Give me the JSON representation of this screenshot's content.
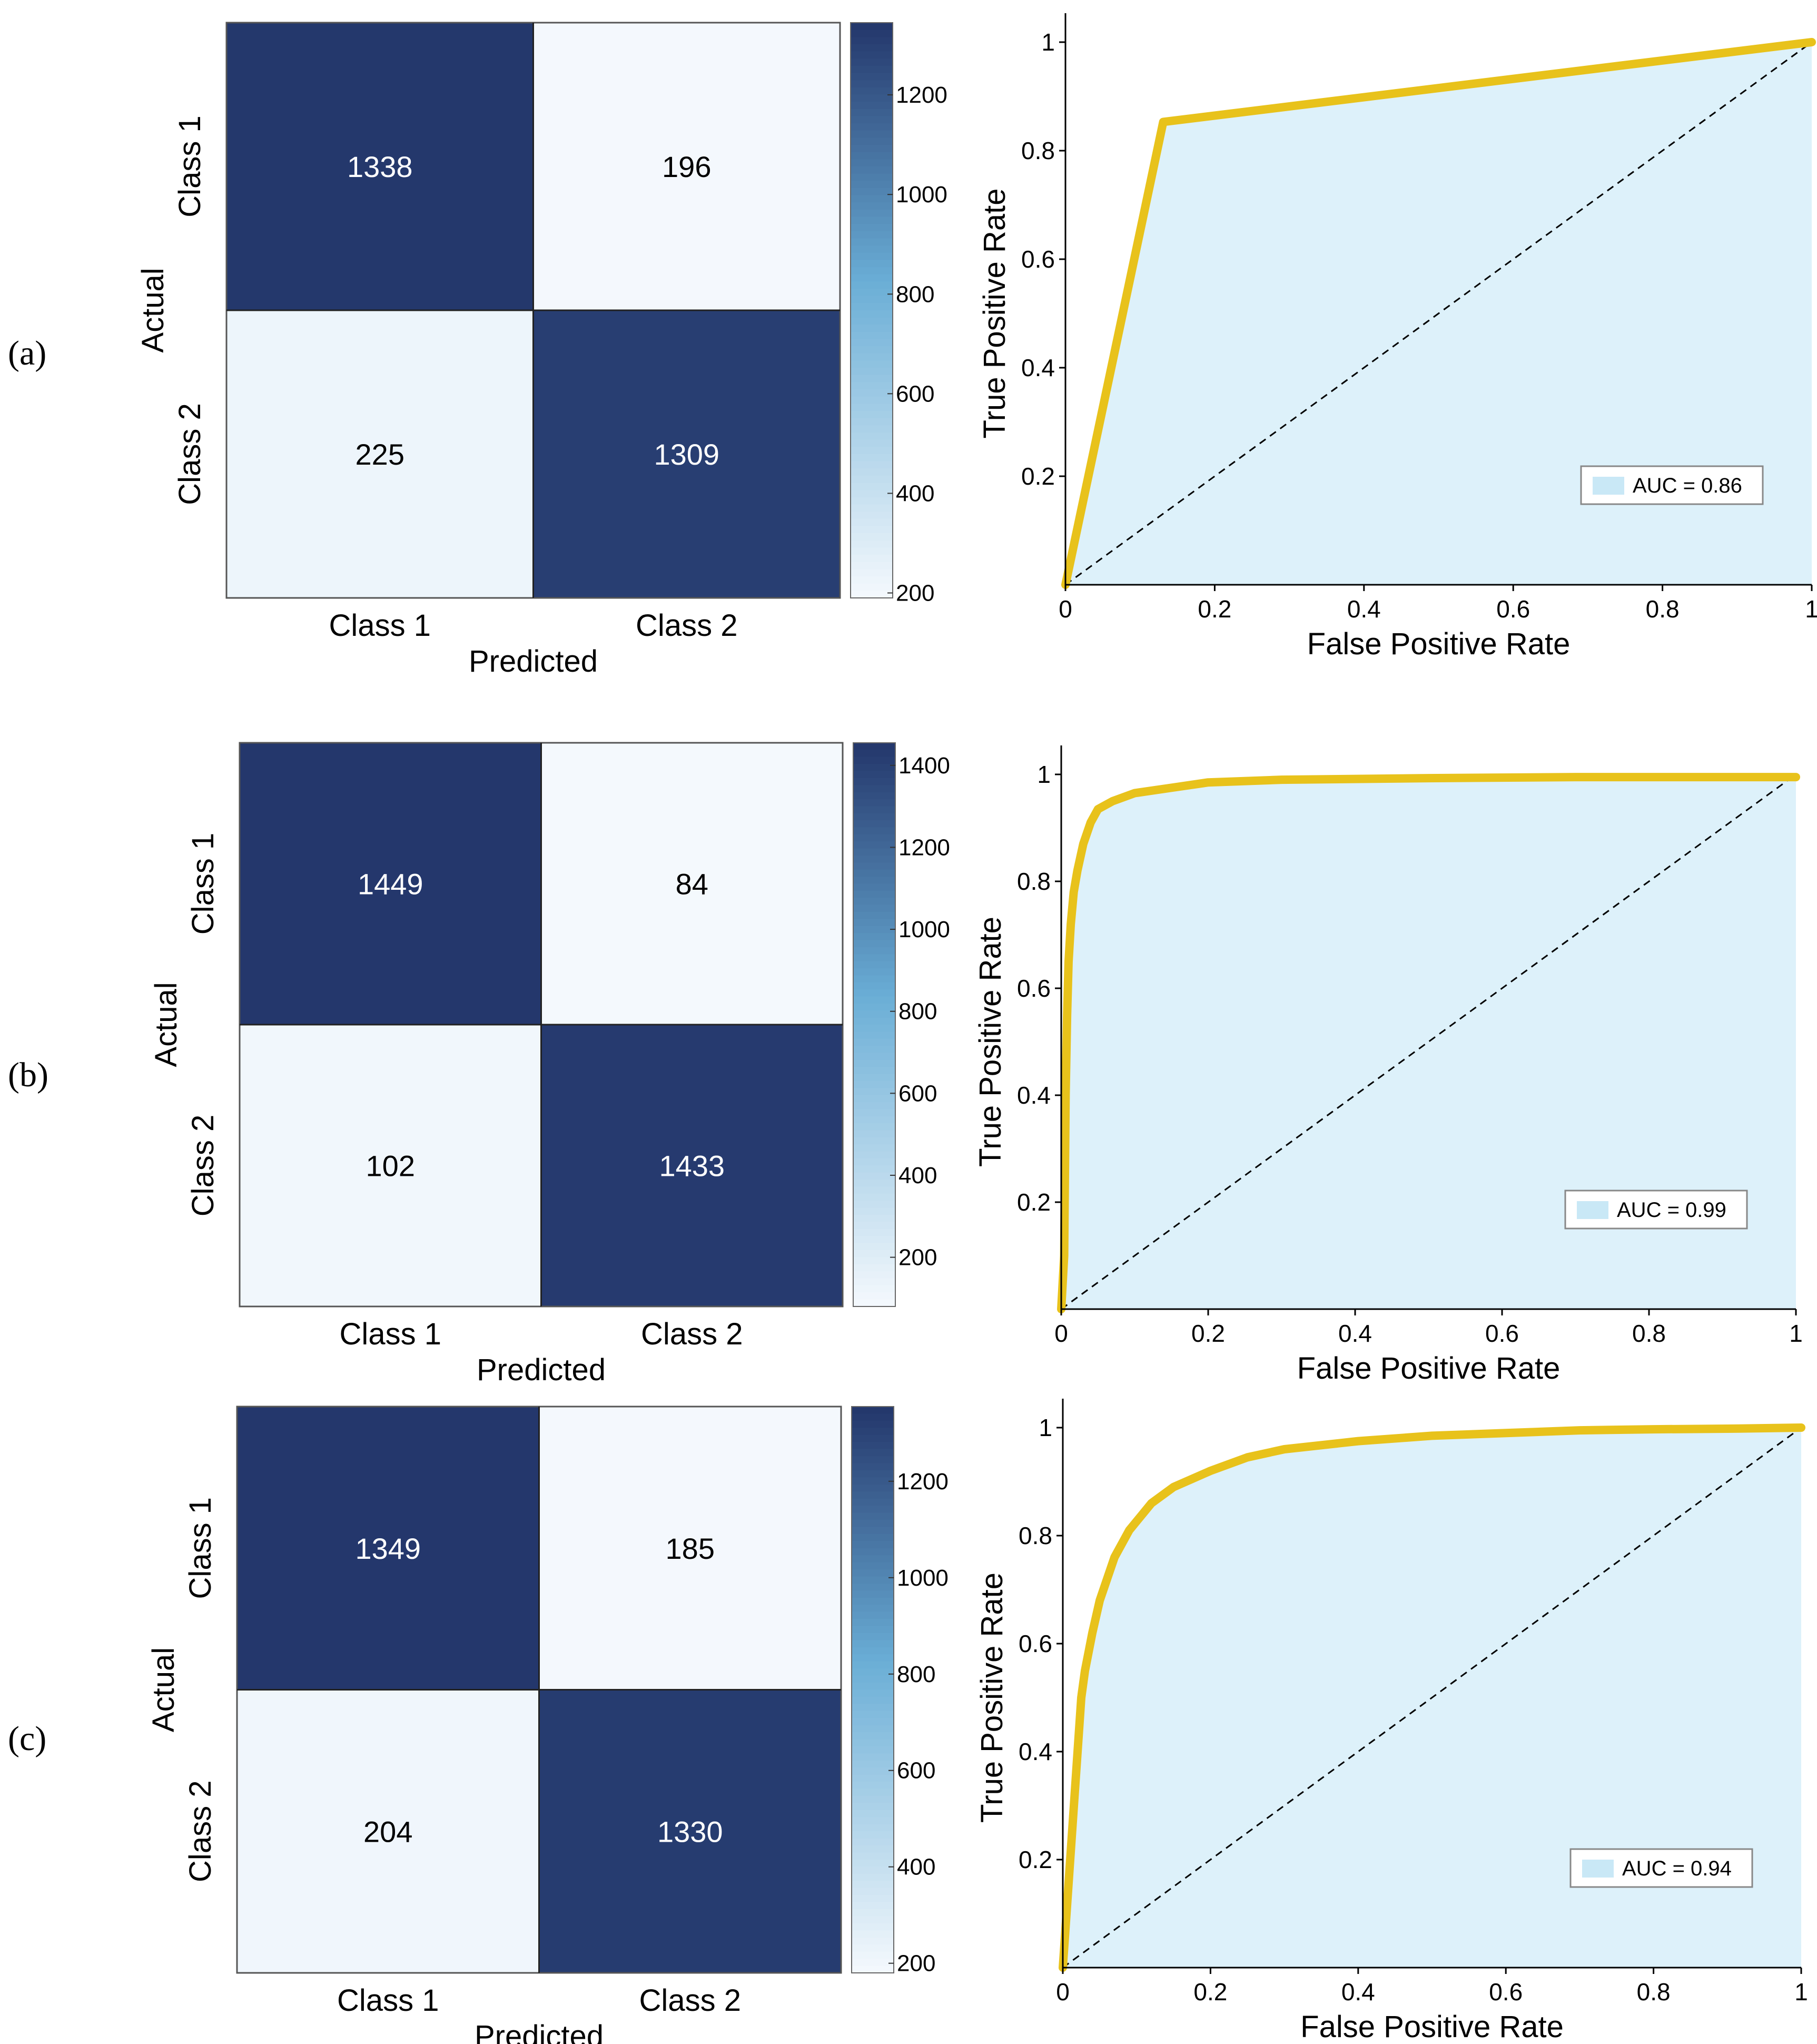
{
  "panel_labels": [
    "(a)",
    "(b)",
    "(c)"
  ],
  "colors": {
    "cm_dark": "#23366b",
    "cm_light": "#f5f9fd",
    "roc_line": "#e8c21b",
    "roc_fill": "#ddf1fa",
    "legend_patch": "#c9e8f6"
  },
  "chart_data": [
    {
      "type": "heatmap",
      "panel": "(a)",
      "xlabel": "Predicted",
      "ylabel": "Actual",
      "x_categories": [
        "Class 1",
        "Class 2"
      ],
      "y_categories": [
        "Class 1",
        "Class 2"
      ],
      "values": [
        [
          1338,
          196
        ],
        [
          225,
          1309
        ]
      ],
      "colorbar": {
        "range": [
          190,
          1345
        ],
        "ticks": [
          200,
          400,
          600,
          800,
          1000,
          1200
        ]
      }
    },
    {
      "type": "area",
      "panel": "(a)",
      "xlabel": "False Positive Rate",
      "ylabel": "True Positive Rate",
      "xlim": [
        0,
        1
      ],
      "ylim": [
        0,
        1
      ],
      "x_ticks": [
        "0",
        "0.2",
        "0.4",
        "0.6",
        "0.8",
        "1"
      ],
      "y_ticks": [
        "0.2",
        "0.4",
        "0.6",
        "0.8",
        "1"
      ],
      "legend": "AUC = 0.86",
      "legend_position": "lower-right",
      "diagonal": true,
      "fpr": [
        0,
        0.131,
        1
      ],
      "tpr": [
        0,
        0.853,
        1
      ]
    },
    {
      "type": "heatmap",
      "panel": "(b)",
      "xlabel": "Predicted",
      "ylabel": "Actual",
      "x_categories": [
        "Class 1",
        "Class 2"
      ],
      "y_categories": [
        "Class 1",
        "Class 2"
      ],
      "values": [
        [
          1449,
          84
        ],
        [
          102,
          1433
        ]
      ],
      "colorbar": {
        "range": [
          80,
          1455
        ],
        "ticks": [
          200,
          400,
          600,
          800,
          1000,
          1200,
          1400
        ]
      }
    },
    {
      "type": "area",
      "panel": "(b)",
      "xlabel": "False Positive Rate",
      "ylabel": "True Positive Rate",
      "xlim": [
        0,
        1
      ],
      "ylim": [
        0,
        1
      ],
      "x_ticks": [
        "0",
        "0.2",
        "0.4",
        "0.6",
        "0.8",
        "1"
      ],
      "y_ticks": [
        "0.2",
        "0.4",
        "0.6",
        "0.8",
        "1"
      ],
      "legend": "AUC = 0.99",
      "legend_position": "lower-right",
      "diagonal": true,
      "fpr": [
        0,
        0.004,
        0.006,
        0.008,
        0.01,
        0.013,
        0.017,
        0.022,
        0.03,
        0.04,
        0.05,
        0.07,
        0.1,
        0.15,
        0.2,
        0.3,
        0.5,
        0.7,
        1
      ],
      "tpr": [
        0,
        0.1,
        0.4,
        0.55,
        0.65,
        0.72,
        0.78,
        0.82,
        0.87,
        0.91,
        0.935,
        0.95,
        0.965,
        0.975,
        0.985,
        0.99,
        0.993,
        0.995,
        0.995
      ]
    },
    {
      "type": "heatmap",
      "panel": "(c)",
      "xlabel": "Predicted",
      "ylabel": "Actual",
      "x_categories": [
        "Class 1",
        "Class 2"
      ],
      "y_categories": [
        "Class 1",
        "Class 2"
      ],
      "values": [
        [
          1349,
          185
        ],
        [
          204,
          1330
        ]
      ],
      "colorbar": {
        "range": [
          180,
          1355
        ],
        "ticks": [
          200,
          400,
          600,
          800,
          1000,
          1200
        ]
      }
    },
    {
      "type": "area",
      "panel": "(c)",
      "xlabel": "False Positive Rate",
      "ylabel": "True Positive Rate",
      "xlim": [
        0,
        1
      ],
      "ylim": [
        0,
        1
      ],
      "x_ticks": [
        "0",
        "0.2",
        "0.4",
        "0.6",
        "0.8",
        "1"
      ],
      "y_ticks": [
        "0.2",
        "0.4",
        "0.6",
        "0.8",
        "1"
      ],
      "legend": "AUC = 0.94",
      "legend_position": "lower-right",
      "diagonal": true,
      "fpr": [
        0,
        0.005,
        0.01,
        0.015,
        0.02,
        0.025,
        0.03,
        0.04,
        0.05,
        0.07,
        0.09,
        0.12,
        0.15,
        0.2,
        0.25,
        0.3,
        0.4,
        0.5,
        0.6,
        0.7,
        0.8,
        0.9,
        1
      ],
      "tpr": [
        0,
        0.1,
        0.2,
        0.3,
        0.4,
        0.5,
        0.55,
        0.62,
        0.68,
        0.76,
        0.81,
        0.86,
        0.89,
        0.92,
        0.945,
        0.96,
        0.975,
        0.985,
        0.99,
        0.995,
        0.997,
        0.998,
        1
      ]
    }
  ]
}
